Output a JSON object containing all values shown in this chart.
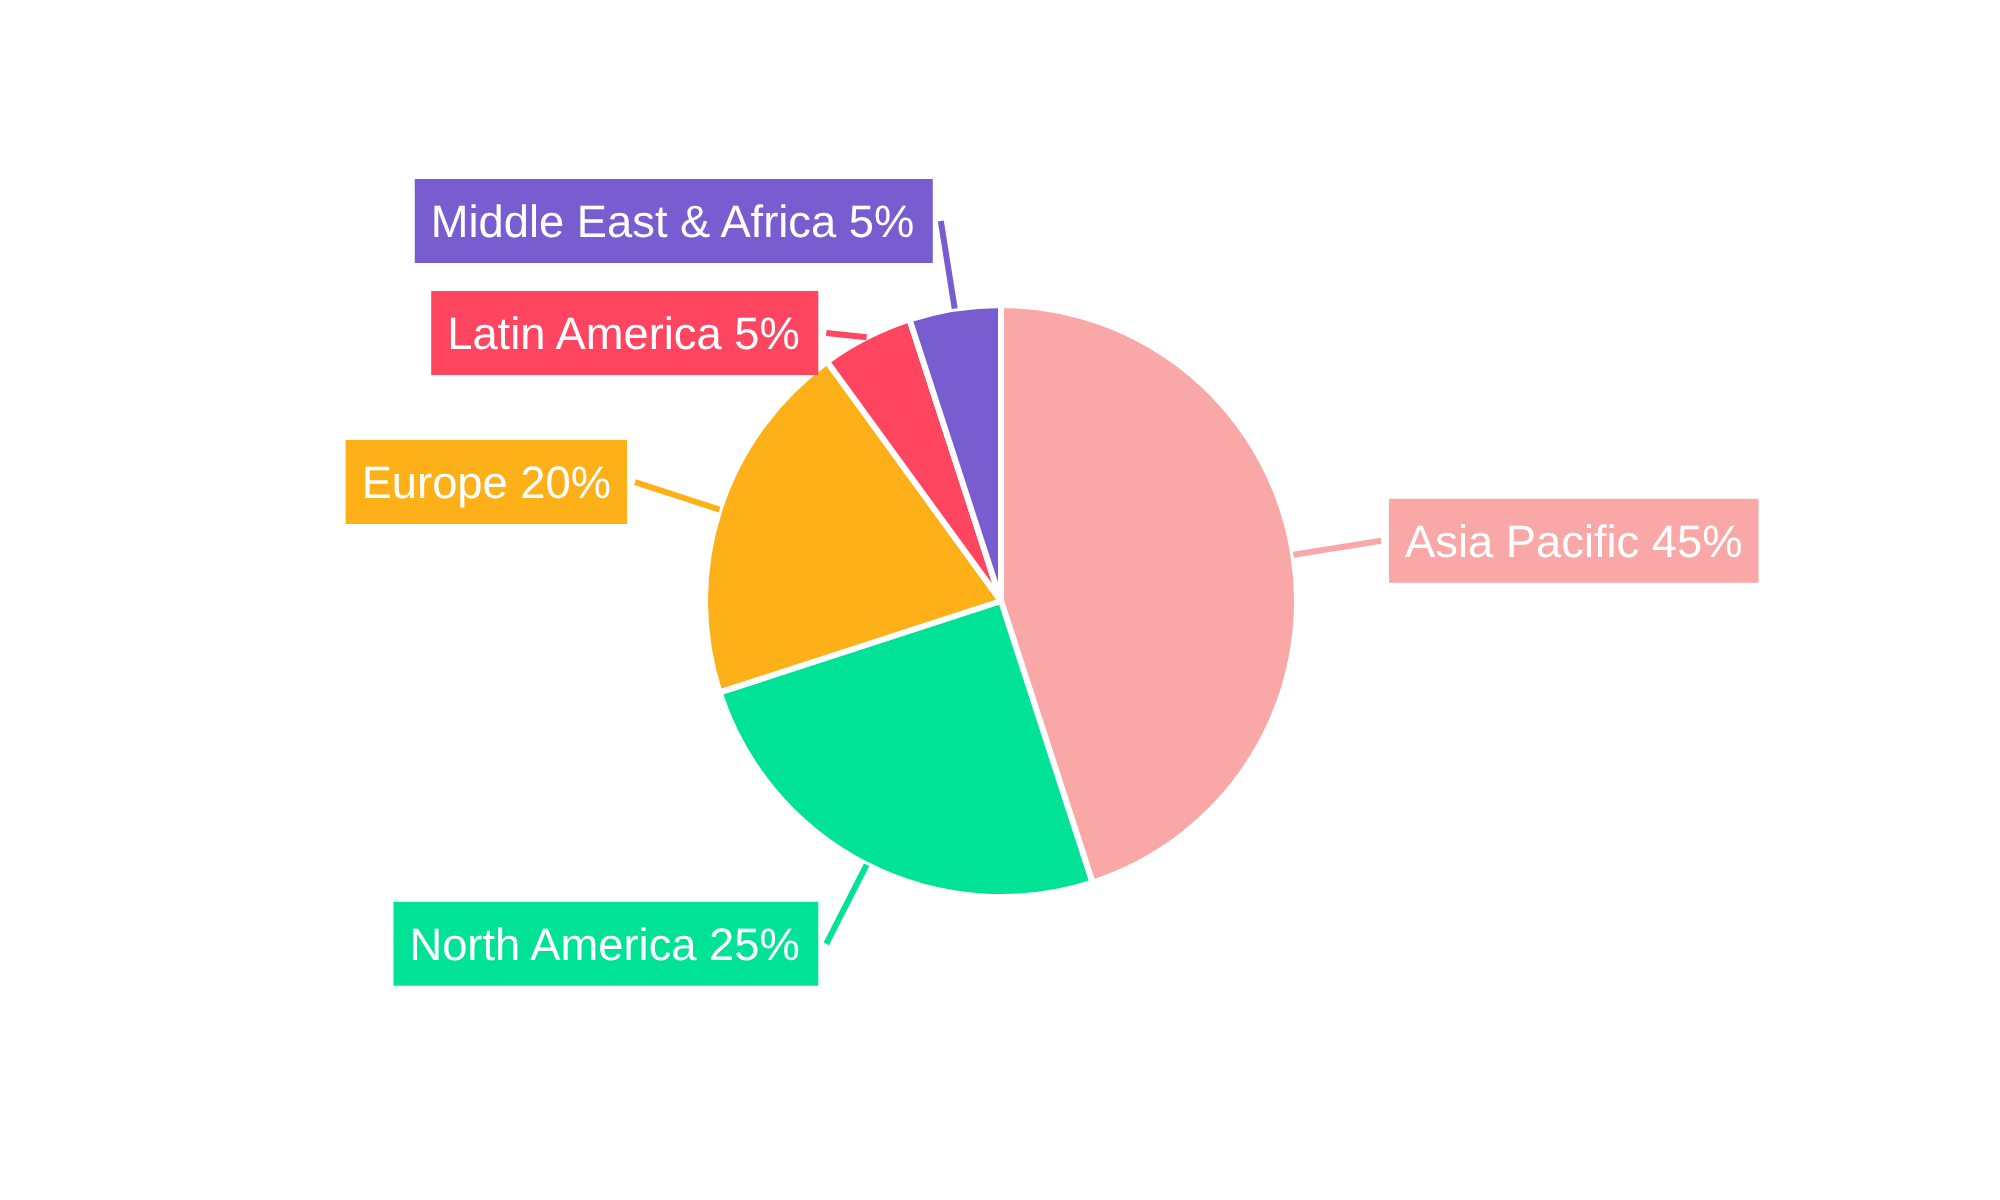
{
  "chart_data": {
    "type": "pie",
    "categories": [
      "Asia Pacific",
      "North America",
      "Europe",
      "Latin America",
      "Middle East & Africa"
    ],
    "values": [
      45,
      25,
      20,
      5,
      5
    ],
    "colors": [
      "#f9a7a7",
      "#00e396",
      "#feb019",
      "#ff4560",
      "#775dd0"
    ],
    "value_labels": [
      "45%",
      "25%",
      "20%",
      "5%",
      "5%"
    ]
  }
}
